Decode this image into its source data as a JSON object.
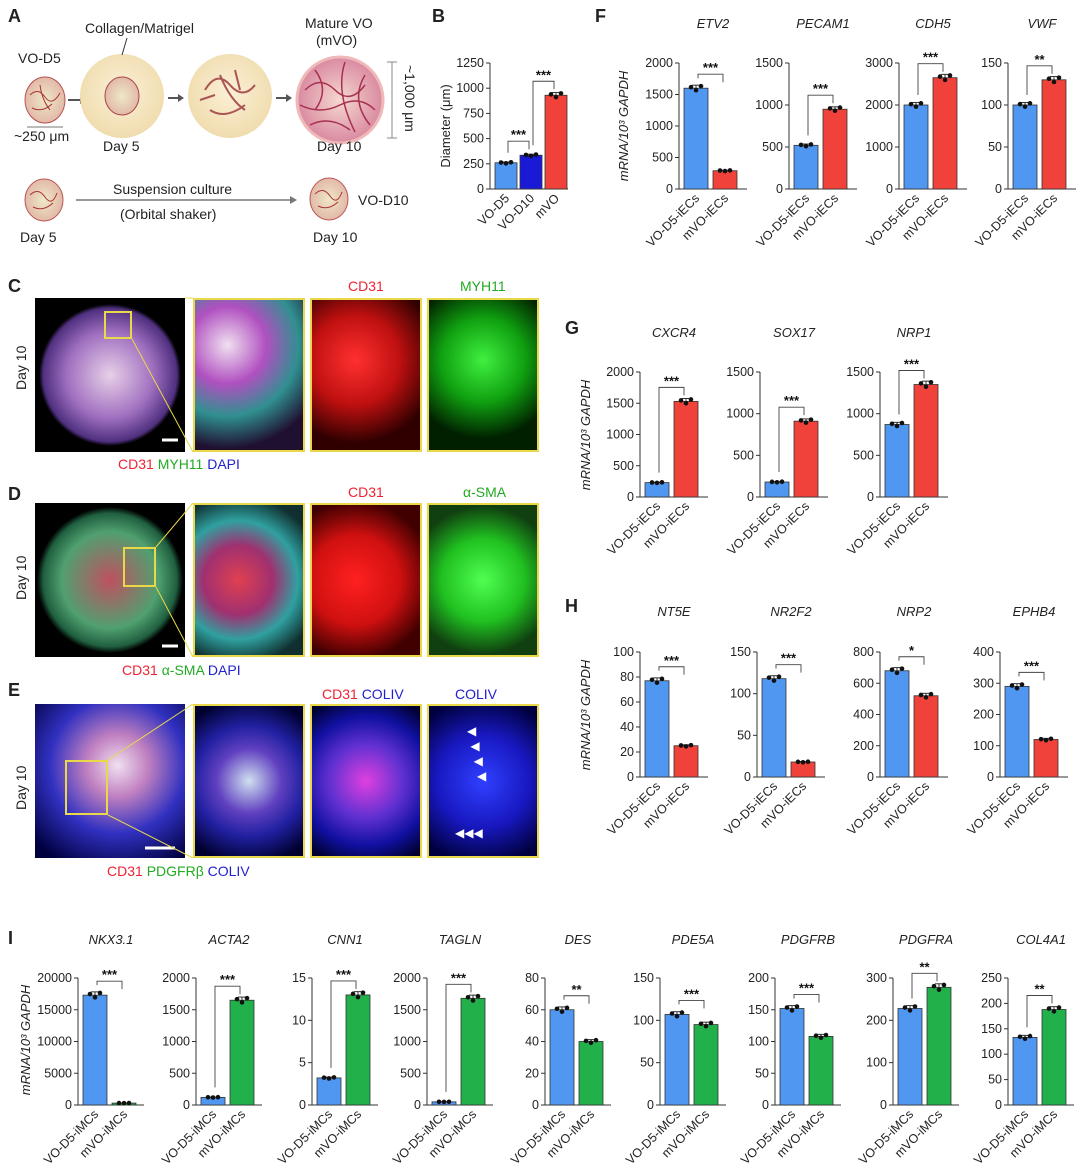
{
  "panel_letters": [
    "A",
    "B",
    "C",
    "D",
    "E",
    "F",
    "G",
    "H",
    "I"
  ],
  "panel_a": {
    "collagen": "Collagen/Matrigel",
    "vo_d5": "VO-D5",
    "size_small": "~250 μm",
    "day5": "Day 5",
    "mature": "Mature VO",
    "mvo": "(mVO)",
    "size_large": "~1,000 μm",
    "day10": "Day 10",
    "suspension": "Suspension culture",
    "orbital": "(Orbital shaker)",
    "vo_d10": "VO-D10",
    "day5b": "Day 5",
    "day10b": "Day 10"
  },
  "micro": {
    "row_label": "Day 10",
    "c": {
      "top1": "CD31",
      "top2": "MYH11",
      "legend": [
        "CD31",
        "MYH11",
        "DAPI"
      ]
    },
    "d": {
      "top1": "CD31",
      "top2": "α-SMA",
      "legend": [
        "CD31",
        "α-SMA",
        "DAPI"
      ]
    },
    "e": {
      "top1a": "CD31",
      "top1b": "COLIV",
      "top2": "COLIV",
      "legend": [
        "CD31",
        "PDGFRβ",
        "COLIV"
      ]
    }
  },
  "colors": {
    "blue": "#4f97f0",
    "darkblue": "#1a1ad6",
    "red": "#f0423a",
    "green": "#22b04a",
    "yellow": "#e8d84a"
  },
  "ylabel_mrna": "mRNA/10³ GAPDH",
  "chart_data": [
    {
      "id": "B",
      "type": "bar",
      "title": "",
      "ylabel": "Diameter (μm)",
      "categories": [
        "VO-D5",
        "VO-D10",
        "mVO"
      ],
      "values": [
        260,
        335,
        930
      ],
      "colors": [
        "#4f97f0",
        "#1a1ad6",
        "#f0423a"
      ],
      "yticks": [
        0,
        250,
        500,
        750,
        1000,
        1250
      ],
      "ylim": [
        0,
        1250
      ],
      "sig": [
        {
          "pair": [
            0,
            1
          ],
          "label": "***"
        },
        {
          "pair": [
            1,
            2
          ],
          "label": "***"
        }
      ]
    },
    {
      "id": "F1",
      "type": "bar",
      "title": "ETV2",
      "categories": [
        "VO-D5-iECs",
        "mVO-iECs"
      ],
      "values": [
        1600,
        290
      ],
      "colors": [
        "#4f97f0",
        "#f0423a"
      ],
      "yticks": [
        0,
        500,
        1000,
        1500,
        2000
      ],
      "ylim": [
        0,
        2000
      ],
      "sig": [
        {
          "pair": [
            0,
            1
          ],
          "label": "***"
        }
      ]
    },
    {
      "id": "F2",
      "type": "bar",
      "title": "PECAM1",
      "categories": [
        "VO-D5-iECs",
        "mVO-iECs"
      ],
      "values": [
        520,
        950
      ],
      "colors": [
        "#4f97f0",
        "#f0423a"
      ],
      "yticks": [
        0,
        500,
        1000,
        1500
      ],
      "ylim": [
        0,
        1500
      ],
      "sig": [
        {
          "pair": [
            0,
            1
          ],
          "label": "***"
        }
      ]
    },
    {
      "id": "F3",
      "type": "bar",
      "title": "CDH5",
      "categories": [
        "VO-D5-iECs",
        "mVO-iECs"
      ],
      "values": [
        2000,
        2650
      ],
      "colors": [
        "#4f97f0",
        "#f0423a"
      ],
      "yticks": [
        0,
        1000,
        2000,
        3000
      ],
      "ylim": [
        0,
        3000
      ],
      "sig": [
        {
          "pair": [
            0,
            1
          ],
          "label": "***"
        }
      ]
    },
    {
      "id": "F4",
      "type": "bar",
      "title": "VWF",
      "categories": [
        "VO-D5-iECs",
        "mVO-iECs"
      ],
      "values": [
        100,
        130
      ],
      "colors": [
        "#4f97f0",
        "#f0423a"
      ],
      "yticks": [
        0,
        50,
        100,
        150
      ],
      "ylim": [
        0,
        150
      ],
      "sig": [
        {
          "pair": [
            0,
            1
          ],
          "label": "**"
        }
      ]
    },
    {
      "id": "G1",
      "type": "bar",
      "title": "CXCR4",
      "categories": [
        "VO-D5-iECs",
        "mVO-iECs"
      ],
      "values": [
        230,
        1530
      ],
      "colors": [
        "#4f97f0",
        "#f0423a"
      ],
      "yticks": [
        0,
        500,
        1000,
        1500,
        2000
      ],
      "ylim": [
        0,
        2000
      ],
      "sig": [
        {
          "pair": [
            0,
            1
          ],
          "label": "***"
        }
      ]
    },
    {
      "id": "G2",
      "type": "bar",
      "title": "SOX17",
      "categories": [
        "VO-D5-iECs",
        "mVO-iECs"
      ],
      "values": [
        180,
        910
      ],
      "colors": [
        "#4f97f0",
        "#f0423a"
      ],
      "yticks": [
        0,
        500,
        1000,
        1500
      ],
      "ylim": [
        0,
        1500
      ],
      "sig": [
        {
          "pair": [
            0,
            1
          ],
          "label": "***"
        }
      ]
    },
    {
      "id": "G3",
      "type": "bar",
      "title": "NRP1",
      "categories": [
        "VO-D5-iECs",
        "mVO-iECs"
      ],
      "values": [
        870,
        1350
      ],
      "colors": [
        "#4f97f0",
        "#f0423a"
      ],
      "yticks": [
        0,
        500,
        1000,
        1500
      ],
      "ylim": [
        0,
        1500
      ],
      "sig": [
        {
          "pair": [
            0,
            1
          ],
          "label": "***"
        }
      ]
    },
    {
      "id": "H1",
      "type": "bar",
      "title": "NT5E",
      "categories": [
        "VO-D5-iECs",
        "mVO-iECs"
      ],
      "values": [
        77,
        25
      ],
      "colors": [
        "#4f97f0",
        "#f0423a"
      ],
      "yticks": [
        0,
        20,
        40,
        60,
        80,
        100
      ],
      "ylim": [
        0,
        100
      ],
      "sig": [
        {
          "pair": [
            0,
            1
          ],
          "label": "***"
        }
      ]
    },
    {
      "id": "H2",
      "type": "bar",
      "title": "NR2F2",
      "categories": [
        "VO-D5-iECs",
        "mVO-iECs"
      ],
      "values": [
        118,
        18
      ],
      "colors": [
        "#4f97f0",
        "#f0423a"
      ],
      "yticks": [
        0,
        50,
        100,
        150
      ],
      "ylim": [
        0,
        150
      ],
      "sig": [
        {
          "pair": [
            0,
            1
          ],
          "label": "***"
        }
      ]
    },
    {
      "id": "H3",
      "type": "bar",
      "title": "NRP2",
      "categories": [
        "VO-D5-iECs",
        "mVO-iECs"
      ],
      "values": [
        680,
        520
      ],
      "colors": [
        "#4f97f0",
        "#f0423a"
      ],
      "yticks": [
        0,
        200,
        400,
        600,
        800
      ],
      "ylim": [
        0,
        800
      ],
      "sig": [
        {
          "pair": [
            0,
            1
          ],
          "label": "*"
        }
      ]
    },
    {
      "id": "H4",
      "type": "bar",
      "title": "EPHB4",
      "categories": [
        "VO-D5-iECs",
        "mVO-iECs"
      ],
      "values": [
        290,
        120
      ],
      "colors": [
        "#4f97f0",
        "#f0423a"
      ],
      "yticks": [
        0,
        100,
        200,
        300,
        400
      ],
      "ylim": [
        0,
        400
      ],
      "sig": [
        {
          "pair": [
            0,
            1
          ],
          "label": "***"
        }
      ]
    },
    {
      "id": "I1",
      "type": "bar",
      "title": "NKX3.1",
      "categories": [
        "VO-D5-iMCs",
        "mVO-iMCs"
      ],
      "values": [
        17300,
        300
      ],
      "colors": [
        "#4f97f0",
        "#22b04a"
      ],
      "yticks": [
        0,
        5000,
        10000,
        15000,
        20000
      ],
      "ylim": [
        0,
        20000
      ],
      "sig": [
        {
          "pair": [
            0,
            1
          ],
          "label": "***"
        }
      ]
    },
    {
      "id": "I2",
      "type": "bar",
      "title": "ACTA2",
      "categories": [
        "VO-D5-iMCs",
        "mVO-iMCs"
      ],
      "values": [
        120,
        1650
      ],
      "colors": [
        "#4f97f0",
        "#22b04a"
      ],
      "yticks": [
        0,
        500,
        1000,
        1500,
        2000
      ],
      "ylim": [
        0,
        2000
      ],
      "sig": [
        {
          "pair": [
            0,
            1
          ],
          "label": "***"
        }
      ]
    },
    {
      "id": "I3",
      "type": "bar",
      "title": "CNN1",
      "categories": [
        "VO-D5-iMCs",
        "mVO-iMCs"
      ],
      "values": [
        3.2,
        13
      ],
      "colors": [
        "#4f97f0",
        "#22b04a"
      ],
      "yticks": [
        0,
        5,
        10,
        15
      ],
      "ylim": [
        0,
        15
      ],
      "sig": [
        {
          "pair": [
            0,
            1
          ],
          "label": "***"
        }
      ]
    },
    {
      "id": "I4",
      "type": "bar",
      "title": "TAGLN",
      "categories": [
        "VO-D5-iMCs",
        "mVO-iMCs"
      ],
      "values": [
        50,
        1680
      ],
      "colors": [
        "#4f97f0",
        "#22b04a"
      ],
      "yticks": [
        0,
        500,
        1000,
        1500,
        2000
      ],
      "ylim": [
        0,
        2000
      ],
      "sig": [
        {
          "pair": [
            0,
            1
          ],
          "label": "***"
        }
      ]
    },
    {
      "id": "I5",
      "type": "bar",
      "title": "DES",
      "categories": [
        "VO-D5-iMCs",
        "mVO-iMCs"
      ],
      "values": [
        60,
        40
      ],
      "colors": [
        "#4f97f0",
        "#22b04a"
      ],
      "yticks": [
        0,
        20,
        40,
        60,
        80
      ],
      "ylim": [
        0,
        80
      ],
      "sig": [
        {
          "pair": [
            0,
            1
          ],
          "label": "**"
        }
      ]
    },
    {
      "id": "I6",
      "type": "bar",
      "title": "PDE5A",
      "categories": [
        "VO-D5-iMCs",
        "mVO-iMCs"
      ],
      "values": [
        107,
        95
      ],
      "colors": [
        "#4f97f0",
        "#22b04a"
      ],
      "yticks": [
        0,
        50,
        100,
        150
      ],
      "ylim": [
        0,
        150
      ],
      "sig": [
        {
          "pair": [
            0,
            1
          ],
          "label": "***"
        }
      ]
    },
    {
      "id": "I7",
      "type": "bar",
      "title": "PDGFRB",
      "categories": [
        "VO-D5-iMCs",
        "mVO-iMCs"
      ],
      "values": [
        152,
        108
      ],
      "colors": [
        "#4f97f0",
        "#22b04a"
      ],
      "yticks": [
        0,
        50,
        100,
        150,
        200
      ],
      "ylim": [
        0,
        200
      ],
      "sig": [
        {
          "pair": [
            0,
            1
          ],
          "label": "***"
        }
      ]
    },
    {
      "id": "I8",
      "type": "bar",
      "title": "PDGFRA",
      "categories": [
        "VO-D5-iMCs",
        "mVO-iMCs"
      ],
      "values": [
        228,
        278
      ],
      "colors": [
        "#4f97f0",
        "#22b04a"
      ],
      "yticks": [
        0,
        100,
        200,
        300
      ],
      "ylim": [
        0,
        300
      ],
      "sig": [
        {
          "pair": [
            0,
            1
          ],
          "label": "**"
        }
      ]
    },
    {
      "id": "I9",
      "type": "bar",
      "title": "COL4A1",
      "categories": [
        "VO-D5-iMCs",
        "mVO-iMCs"
      ],
      "values": [
        133,
        188
      ],
      "colors": [
        "#4f97f0",
        "#22b04a"
      ],
      "yticks": [
        0,
        50,
        100,
        150,
        200,
        250
      ],
      "ylim": [
        0,
        250
      ],
      "sig": [
        {
          "pair": [
            0,
            1
          ],
          "label": "**"
        }
      ]
    }
  ]
}
